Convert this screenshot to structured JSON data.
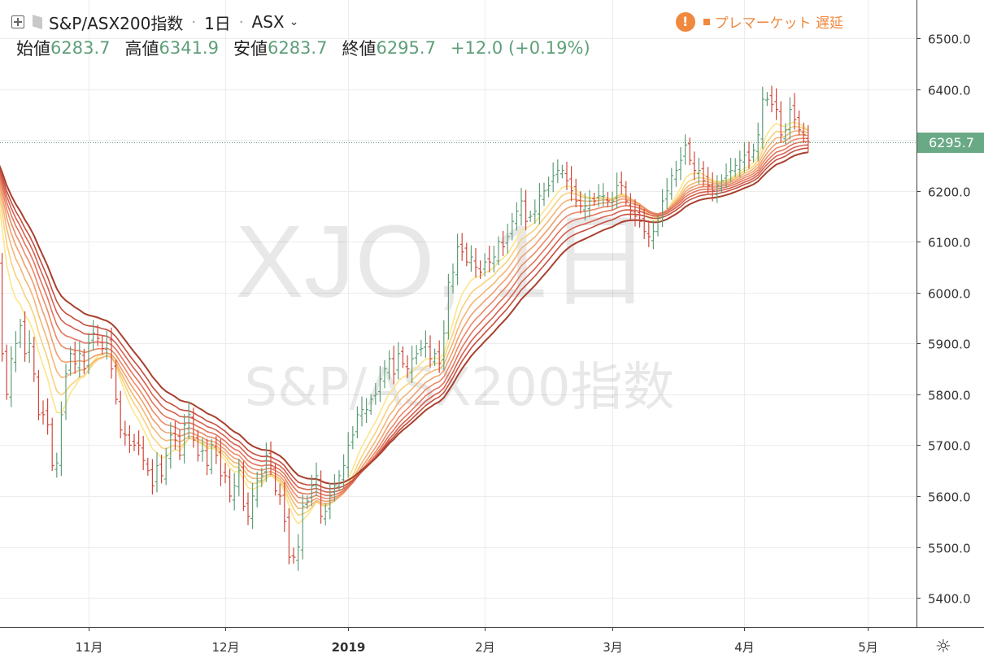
{
  "header": {
    "symbol": "S&P/ASX200指数",
    "interval": "1日",
    "exchange": "ASX",
    "open_label": "始値",
    "open_value": "6283.7",
    "high_label": "高値",
    "high_value": "6341.9",
    "low_label": "安値",
    "low_value": "6283.7",
    "close_label": "終値",
    "close_value": "6295.7",
    "change": "+12.0 (+0.19%)",
    "status_text": "プレマーケット 遅延",
    "warn_glyph": "!"
  },
  "watermark": {
    "line1": "XJO, 1日",
    "line2": "S&P/ASX200指数"
  },
  "colors": {
    "up": "#5f9e79",
    "down": "#d0473a",
    "accent": "#f0883e",
    "ribbon": [
      "#fbe58c",
      "#f8d17c",
      "#f3b777",
      "#f09f6f",
      "#ea8a68",
      "#e2745d",
      "#d66150",
      "#c44f3e",
      "#a8402e"
    ]
  },
  "chart_data": {
    "type": "ohlc",
    "price_axis_ticks": [
      "6500.0",
      "6400.0",
      "6300.0",
      "6200.0",
      "6100.0",
      "6000.0",
      "5900.0",
      "5800.0",
      "5700.0",
      "5600.0",
      "5500.0",
      "5400.0"
    ],
    "ylim": [
      5365,
      6555
    ],
    "last_price_label": "6295.7",
    "x_labels": [
      {
        "day": 20,
        "label": "11月"
      },
      {
        "day": 50,
        "label": "12月"
      },
      {
        "day": 77,
        "label": "2019"
      },
      {
        "day": 107,
        "label": "2月"
      },
      {
        "day": 135,
        "label": "3月"
      },
      {
        "day": 164,
        "label": "4月"
      },
      {
        "day": 191,
        "label": "5月"
      }
    ],
    "closes": [
      6050,
      5880,
      5800,
      5870,
      5900,
      5935,
      5880,
      5900,
      5840,
      5760,
      5760,
      5740,
      5660,
      5665,
      5760,
      5840,
      5880,
      5860,
      5880,
      5850,
      5900,
      5920,
      5910,
      5890,
      5900,
      5850,
      5790,
      5730,
      5720,
      5700,
      5700,
      5700,
      5670,
      5650,
      5620,
      5660,
      5640,
      5680,
      5720,
      5710,
      5680,
      5740,
      5760,
      5710,
      5680,
      5690,
      5660,
      5700,
      5680,
      5640,
      5640,
      5600,
      5620,
      5650,
      5580,
      5560,
      5600,
      5630,
      5640,
      5680,
      5660,
      5610,
      5600,
      5550,
      5480,
      5480,
      5500,
      5580,
      5590,
      5620,
      5640,
      5560,
      5570,
      5600,
      5620,
      5640,
      5660,
      5700,
      5720,
      5760,
      5770,
      5770,
      5790,
      5800,
      5830,
      5850,
      5870,
      5840,
      5880,
      5860,
      5850,
      5870,
      5880,
      5890,
      5900,
      5870,
      5880,
      5860,
      5920,
      6020,
      6040,
      6090,
      6080,
      6060,
      6070,
      6050,
      6040,
      6060,
      6060,
      6070,
      6100,
      6090,
      6110,
      6140,
      6160,
      6180,
      6140,
      6150,
      6160,
      6190,
      6200,
      6210,
      6230,
      6240,
      6240,
      6220,
      6200,
      6180,
      6170,
      6170,
      6180,
      6180,
      6190,
      6190,
      6180,
      6180,
      6210,
      6210,
      6180,
      6160,
      6150,
      6140,
      6120,
      6110,
      6120,
      6140,
      6180,
      6200,
      6230,
      6240,
      6260,
      6290,
      6260,
      6240,
      6240,
      6220,
      6210,
      6200,
      6210,
      6220,
      6230,
      6240,
      6250,
      6260,
      6270,
      6260,
      6280,
      6310,
      6380,
      6380,
      6370,
      6360,
      6310,
      6320,
      6360,
      6340,
      6320,
      6310,
      6296
    ],
    "ribbon_periods": [
      8,
      11,
      14,
      17,
      20,
      23,
      26,
      29,
      33
    ],
    "ema_seed": 6240
  }
}
